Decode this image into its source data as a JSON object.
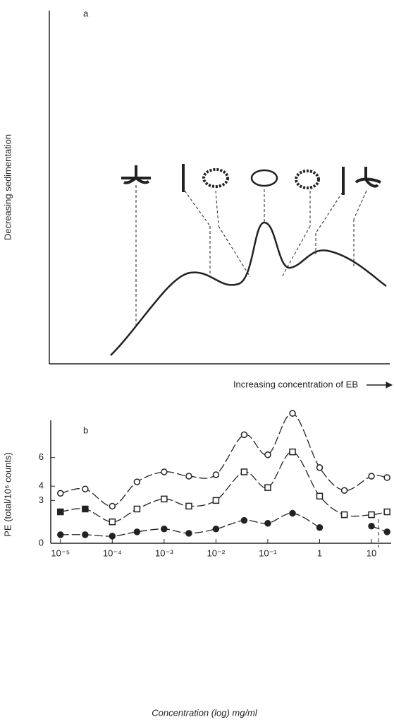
{
  "panel_a": {
    "label": "a",
    "y_axis_label": "Decreasing sedimentation",
    "x_axis_label": "Increasing concentration of EB"
  },
  "chart_data": {
    "type": "line",
    "label": "b",
    "x_label": "Concentration (log) mg/ml",
    "y_label": "PE (total/10⁶ counts)",
    "x_scale": "log",
    "x": [
      1e-05,
      3e-05,
      0.0001,
      0.0003,
      0.001,
      0.003,
      0.01,
      0.035,
      0.1,
      0.3,
      1,
      3,
      10,
      20
    ],
    "xlim": [
      6.5e-06,
      24
    ],
    "xticks": [
      {
        "value": 1e-05,
        "label": "10⁻⁵"
      },
      {
        "value": 0.0001,
        "label": "10⁻⁴"
      },
      {
        "value": 0.001,
        "label": "10⁻³"
      },
      {
        "value": 0.01,
        "label": "10⁻²"
      },
      {
        "value": 0.1,
        "label": "10⁻¹"
      },
      1,
      10
    ],
    "ylim": [
      0,
      9.5
    ],
    "yticks": [
      0,
      3,
      4,
      6
    ],
    "series": [
      {
        "color": "#222222",
        "marker": "circle",
        "filled": false,
        "values": [
          3.5,
          3.8,
          2.6,
          4.3,
          5.0,
          4.7,
          4.8,
          7.6,
          6.2,
          9.1,
          5.3,
          3.7,
          4.7,
          4.6
        ]
      },
      {
        "color": "#222222",
        "marker": "square",
        "filled": [
          true,
          true,
          false,
          false,
          false,
          false,
          false,
          false,
          false,
          false,
          false,
          false,
          false,
          false
        ],
        "values": [
          2.2,
          2.4,
          1.5,
          2.4,
          3.1,
          2.6,
          3.0,
          5.0,
          3.9,
          6.4,
          3.3,
          2.0,
          2.0,
          2.2
        ]
      },
      {
        "color": "#222222",
        "marker": "circle",
        "filled": true,
        "values": [
          0.6,
          0.6,
          0.5,
          0.8,
          1.0,
          0.7,
          1.0,
          1.6,
          1.4,
          2.1,
          1.1,
          null,
          1.2,
          0.8
        ]
      }
    ]
  }
}
